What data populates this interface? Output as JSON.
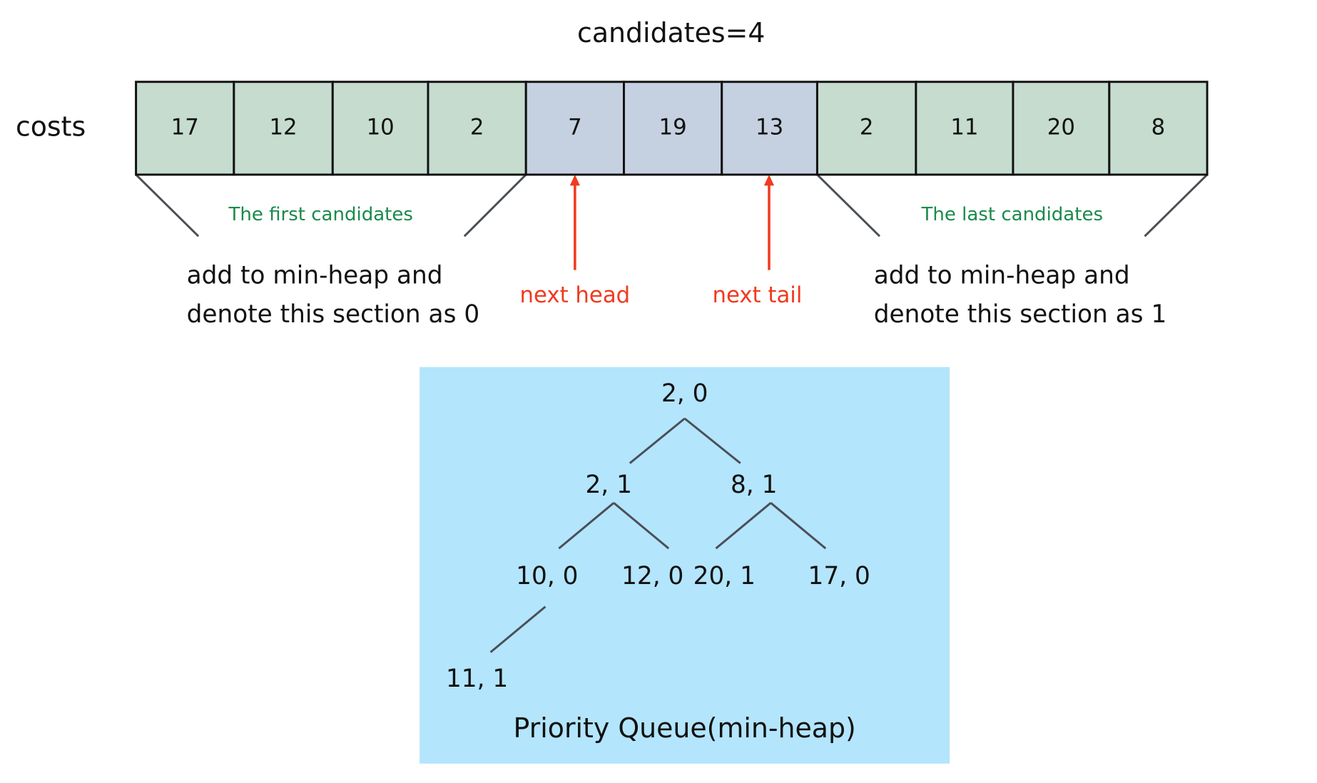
{
  "title": "candidates=4",
  "array": {
    "label": "costs",
    "cells": [
      17,
      12,
      10,
      2,
      7,
      19,
      13,
      2,
      11,
      20,
      8
    ]
  },
  "annotations": {
    "first_section": "The first candidates",
    "last_section": "The last candidates",
    "left_note": [
      "add to min-heap and",
      "denote this section as 0"
    ],
    "right_note": [
      "add to min-heap and",
      "denote this section as 1"
    ],
    "next_head": "next head",
    "next_tail": "next tail"
  },
  "heap": {
    "nodes": [
      "2, 0",
      "2, 1",
      "8, 1",
      "10, 0",
      "12, 0",
      "20, 1",
      "17, 0",
      "11, 1"
    ],
    "caption": "Priority Queue(min-heap)"
  }
}
